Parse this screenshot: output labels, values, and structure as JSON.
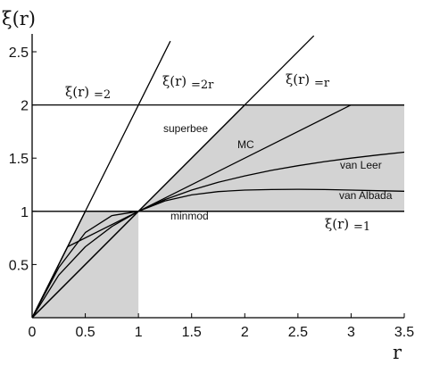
{
  "chart_data": {
    "type": "line",
    "title": "",
    "xlabel": "r",
    "ylabel": "ξ(r)",
    "xlim": [
      0,
      3.5
    ],
    "ylim": [
      0,
      2.5
    ],
    "xticks": [
      "0",
      "0.5",
      "1",
      "1.5",
      "2",
      "2.5",
      "3",
      "3.5"
    ],
    "yticks": [
      "0.5",
      "1",
      "1.5",
      "2",
      "2.5"
    ],
    "grid": false,
    "colors": {
      "line": "#000000",
      "region": "#d3d3d3"
    },
    "tvd_region": {
      "x": [
        0,
        0.5,
        1,
        2,
        3.5,
        3.5,
        1,
        1
      ],
      "y": [
        0,
        1,
        1,
        2,
        2,
        1,
        1,
        0
      ]
    },
    "series": [
      {
        "name": "superbee",
        "x": [
          0,
          0.5,
          1,
          2,
          3.5
        ],
        "y": [
          0,
          1,
          1,
          2,
          2
        ]
      },
      {
        "name": "MC",
        "x": [
          0,
          0.333,
          1,
          3,
          3.5
        ],
        "y": [
          0,
          0.667,
          1,
          2,
          2
        ]
      },
      {
        "name": "van Leer",
        "x": [
          0,
          0.25,
          0.5,
          0.75,
          1,
          1.25,
          1.5,
          1.75,
          2,
          2.25,
          2.5,
          2.75,
          3,
          3.25,
          3.5
        ],
        "y": [
          0,
          0.4,
          0.667,
          0.857,
          1,
          1.111,
          1.2,
          1.273,
          1.333,
          1.385,
          1.429,
          1.467,
          1.5,
          1.529,
          1.556
        ]
      },
      {
        "name": "van Albada",
        "x": [
          0,
          0.25,
          0.5,
          0.75,
          1,
          1.25,
          1.5,
          1.75,
          2,
          2.25,
          2.5,
          2.75,
          3,
          3.25,
          3.5
        ],
        "y": [
          0,
          0.471,
          0.8,
          0.96,
          1,
          1.098,
          1.154,
          1.185,
          1.2,
          1.205,
          1.207,
          1.205,
          1.2,
          1.194,
          1.189
        ]
      },
      {
        "name": "minmod",
        "x": [
          0,
          1,
          3.5
        ],
        "y": [
          0,
          1,
          1
        ]
      }
    ],
    "reference_lines": [
      {
        "name": "ξ(r)=2r",
        "x": [
          0,
          1.3
        ],
        "y": [
          0,
          2.6
        ]
      },
      {
        "name": "ξ(r)=r",
        "x": [
          0,
          2.65
        ],
        "y": [
          0,
          2.65
        ]
      },
      {
        "name": "ξ(r)=2",
        "x": [
          0,
          3.5
        ],
        "y": [
          2,
          2
        ]
      },
      {
        "name": "ξ(r)=1",
        "x": [
          0,
          3.5
        ],
        "y": [
          1,
          1
        ]
      }
    ],
    "annotations": {
      "xi2r_main": "ξ(r)",
      "xi2r_sub": "=2r",
      "xir_main": "ξ(r)",
      "xir_sub": "=r",
      "xi2_main": "ξ(r)",
      "xi2_sub": "=2",
      "xi1_main": "ξ(r)",
      "xi1_sub": "=1"
    }
  }
}
